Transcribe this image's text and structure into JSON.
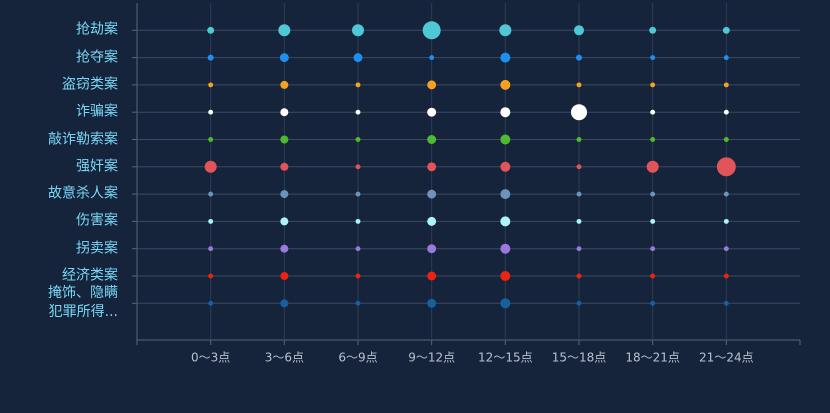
{
  "chart_data": {
    "type": "bubble",
    "categories": [
      "0～3点",
      "3～6点",
      "6～9点",
      "9～12点",
      "12～15点",
      "15～18点",
      "18～21点",
      "21～24点"
    ],
    "series": [
      {
        "name": "抢劫案",
        "color": "#4fc8d6",
        "values": [
          12,
          36,
          36,
          81,
          36,
          25,
          12,
          12
        ]
      },
      {
        "name": "抢夺案",
        "color": "#1e8ff0",
        "values": [
          9,
          20,
          20,
          6,
          25,
          9,
          6,
          6
        ]
      },
      {
        "name": "盗窃类案",
        "color": "#f5a020",
        "values": [
          6,
          16,
          6,
          20,
          25,
          6,
          6,
          6
        ]
      },
      {
        "name": "诈骗案",
        "color": "#ffffff",
        "values": [
          6,
          16,
          6,
          20,
          25,
          64,
          6,
          6
        ]
      },
      {
        "name": "敲诈勒索案",
        "color": "#4cbb30",
        "values": [
          6,
          16,
          6,
          20,
          25,
          6,
          6,
          6
        ]
      },
      {
        "name": "强奸案",
        "color": "#e0545a",
        "values": [
          36,
          16,
          6,
          20,
          25,
          6,
          36,
          90
        ]
      },
      {
        "name": "故意杀人案",
        "color": "#6d93bd",
        "values": [
          6,
          16,
          6,
          20,
          25,
          6,
          6,
          6
        ]
      },
      {
        "name": "伤害案",
        "color": "#aef4f4",
        "values": [
          6,
          16,
          6,
          20,
          25,
          6,
          6,
          6
        ]
      },
      {
        "name": "拐卖案",
        "color": "#9a78dc",
        "values": [
          6,
          16,
          6,
          20,
          25,
          6,
          6,
          6
        ]
      },
      {
        "name": "经济类案",
        "color": "#ee2211",
        "values": [
          6,
          16,
          6,
          20,
          25,
          6,
          6,
          6
        ]
      },
      {
        "name": "掩饰、隐瞒\n犯罪所得...",
        "color": "#15609f",
        "values": [
          6,
          16,
          6,
          20,
          25,
          6,
          6,
          6
        ]
      }
    ]
  }
}
